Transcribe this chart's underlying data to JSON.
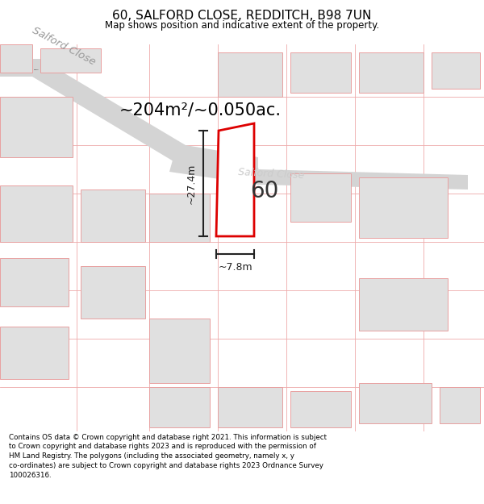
{
  "title": "60, SALFORD CLOSE, REDDITCH, B98 7UN",
  "subtitle": "Map shows position and indicative extent of the property.",
  "footer_line1": "Contains OS data © Crown copyright and database right 2021. This information is subject",
  "footer_line2": "to Crown copyright and database rights 2023 and is reproduced with the permission of",
  "footer_line3": "HM Land Registry. The polygons (including the associated geometry, namely x, y",
  "footer_line4": "co-ordinates) are subject to Crown copyright and database rights 2023 Ordnance Survey",
  "footer_line5": "100026316.",
  "area_text": "~204m²/~0.050ac.",
  "dim_height": "~27.4m",
  "dim_width": "~7.8m",
  "house_number": "60",
  "map_bg": "#f7f7f7",
  "building_fill": "#e0e0e0",
  "building_edge": "#e8a0a0",
  "plot_fill": "#ffffff",
  "plot_edge": "#dd0000",
  "road_fill": "#d4d4d4",
  "road_label_color": "#aaaaaa",
  "road_label2_color": "#c8c8c8",
  "dim_line_color": "#222222",
  "grid_color": "#eeaaaa"
}
